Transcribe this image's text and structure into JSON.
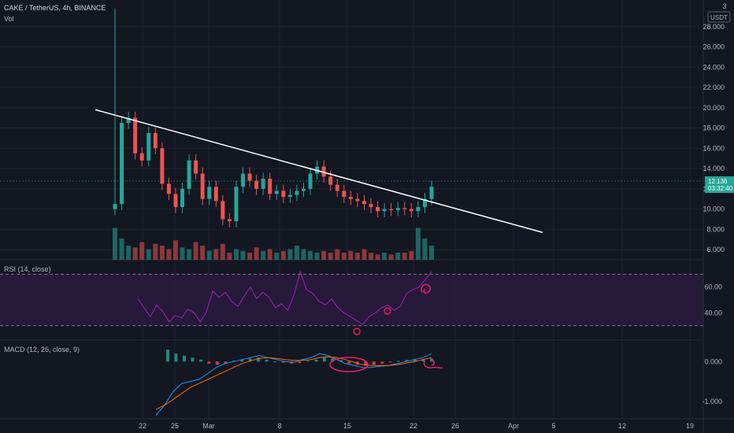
{
  "header": {
    "symbol_title": "CAKE / TetherUS, 4h, BINANCE",
    "volume_label": "Vol",
    "currency": "USDT",
    "top_axis_partial": "3"
  },
  "price_tag": {
    "value": "12.136",
    "countdown": "03:32:40",
    "color": "#26a69a"
  },
  "colors": {
    "background": "#131722",
    "up": "#26a69a",
    "down": "#ef5350",
    "rsi_line": "#9c27b0",
    "rsi_band": "#2a1a3e",
    "macd_line": "#2196f3",
    "signal_line": "#ff6d00",
    "trendline": "#ffffff",
    "annotation": "#e91e63"
  },
  "chart_data": [
    {
      "type": "candlestick",
      "name": "price",
      "ylim": [
        5,
        30
      ],
      "y_ticks": [
        "28.000",
        "26.000",
        "24.000",
        "22.000",
        "20.000",
        "18.000",
        "16.000",
        "14.000",
        "12.000",
        "10.000",
        "8.000",
        "6.000"
      ],
      "x_ticks": [
        "22",
        "25",
        "Mar",
        "8",
        "15",
        "22",
        "26",
        "Apr",
        "5",
        "12",
        "19"
      ],
      "close_approx": [
        10.5,
        18.5,
        19.0,
        15.5,
        14.8,
        17.5,
        16.0,
        12.5,
        11.5,
        10.2,
        12.0,
        14.8,
        13.5,
        11.0,
        12.2,
        10.8,
        9.0,
        8.8,
        12.2,
        13.5,
        12.8,
        12.0,
        13.0,
        11.5,
        11.8,
        11.2,
        11.4,
        11.8,
        12.0,
        13.5,
        14.2,
        13.2,
        12.4,
        11.8,
        11.2,
        11.0,
        10.8,
        10.5,
        10.2,
        9.8,
        10.0,
        9.9,
        10.1,
        10.0,
        9.8,
        10.2,
        11.0,
        12.2
      ],
      "trendline": {
        "start": 19.8,
        "end": 7.7
      }
    },
    {
      "type": "bar",
      "name": "volume",
      "values_relative": [
        0.9,
        0.6,
        0.4,
        0.35,
        0.5,
        0.3,
        0.45,
        0.4,
        0.3,
        0.55,
        0.35,
        0.3,
        0.5,
        0.4,
        0.25,
        0.3,
        0.45,
        0.2,
        0.3,
        0.25,
        0.2,
        0.35,
        0.25,
        0.3,
        0.2,
        0.25,
        0.3,
        0.4,
        0.3,
        0.25,
        0.2,
        0.25,
        0.2,
        0.3,
        0.2,
        0.25,
        0.2,
        0.3,
        0.2,
        0.15,
        0.2,
        0.15,
        0.2,
        0.2,
        0.25,
        0.9,
        0.6,
        0.4
      ]
    },
    {
      "type": "line",
      "name": "RSI (14, close)",
      "label": "RSI (14, close)",
      "ylim": [
        20,
        80
      ],
      "band": [
        30,
        70
      ],
      "y_ticks": [
        "60.00",
        "40.00"
      ],
      "values": [
        51,
        44,
        37,
        46,
        41,
        33,
        38,
        36,
        43,
        40,
        33,
        41,
        57,
        52,
        56,
        49,
        45,
        53,
        60,
        51,
        56,
        52,
        44,
        47,
        42,
        54,
        72,
        58,
        55,
        49,
        46,
        51,
        44,
        40,
        37,
        34,
        31,
        37,
        40,
        44,
        46,
        42,
        45,
        55,
        58,
        60,
        66,
        72
      ]
    },
    {
      "type": "line",
      "name": "MACD (12, 26, close, 9)",
      "label": "MACD (12, 26, close, 9)",
      "ylim": [
        -1.4,
        0.5
      ],
      "y_ticks": [
        "0.000",
        "-1.000"
      ],
      "macd": [
        -1.35,
        -1.1,
        -0.75,
        -0.55,
        -0.5,
        -0.45,
        -0.3,
        -0.15,
        -0.05,
        0.0,
        0.05,
        0.1,
        0.15,
        0.1,
        0.05,
        0.0,
        -0.02,
        0.05,
        0.1,
        0.2,
        0.15,
        0.05,
        -0.05,
        -0.1,
        -0.15,
        -0.15,
        -0.12,
        -0.1,
        -0.05,
        0.0,
        0.05,
        0.1,
        0.2
      ],
      "signal": [
        -1.2,
        -1.1,
        -0.95,
        -0.8,
        -0.65,
        -0.55,
        -0.45,
        -0.35,
        -0.25,
        -0.15,
        -0.05,
        0.02,
        0.08,
        0.1,
        0.08,
        0.05,
        0.03,
        0.03,
        0.05,
        0.1,
        0.12,
        0.1,
        0.05,
        -0.02,
        -0.08,
        -0.1,
        -0.1,
        -0.1,
        -0.08,
        -0.04,
        0.0,
        0.05,
        0.1
      ],
      "histogram": [
        0.3,
        0.2,
        0.15,
        0.1,
        0.05,
        -0.05,
        -0.08,
        -0.05,
        0.02,
        0.05,
        0.08,
        0.1,
        0.05,
        0.0,
        -0.03,
        -0.05,
        -0.04,
        0.02,
        0.05,
        0.1,
        0.08,
        0.04,
        -0.05,
        -0.08,
        -0.1,
        -0.08,
        -0.05,
        -0.02,
        0.02,
        0.04,
        0.05,
        0.06,
        0.08
      ]
    }
  ]
}
